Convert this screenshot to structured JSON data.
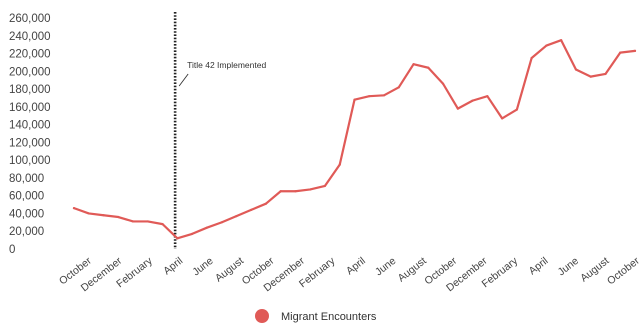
{
  "chart_data": {
    "type": "line",
    "title": "",
    "xlabel": "",
    "ylabel": "",
    "ylim": [
      0,
      260000
    ],
    "yticks": [
      "0",
      "20,000",
      "40,000",
      "60,000",
      "80,000",
      "100,000",
      "120,000",
      "140,000",
      "160,000",
      "180,000",
      "200,000",
      "220,000",
      "240,000",
      "260,000"
    ],
    "x_tick_labels": [
      "October",
      "December",
      "February",
      "April",
      "June",
      "August",
      "October",
      "December",
      "February",
      "April",
      "June",
      "August",
      "October",
      "December",
      "February",
      "April",
      "June",
      "August",
      "October"
    ],
    "grid": false,
    "legend_position": "bottom-center",
    "series": [
      {
        "name": "Migrant Encounters",
        "color": "#e05a57",
        "values": [
          46000,
          40000,
          38000,
          36000,
          31000,
          31000,
          28000,
          12000,
          17000,
          24000,
          30000,
          37000,
          44000,
          51000,
          65000,
          65000,
          67000,
          71000,
          95000,
          168000,
          172000,
          173000,
          182000,
          208000,
          204000,
          186000,
          158000,
          167000,
          172000,
          147000,
          157000,
          215000,
          229000,
          235000,
          202000,
          194000,
          197000,
          221000,
          223000
        ]
      }
    ],
    "annotations": [
      {
        "text": "Title 42 Implemented",
        "x_index": 6.85,
        "style": "dotted-vertical-line"
      }
    ]
  }
}
